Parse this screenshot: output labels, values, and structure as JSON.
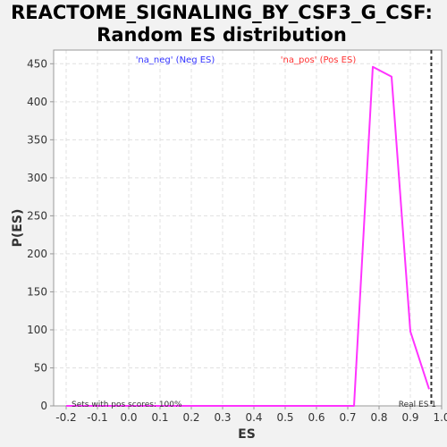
{
  "chart_data": {
    "type": "line",
    "title": "REACTOME_SIGNALING_BY_CSF3_G_CSF:",
    "subtitle": "Random ES distribution",
    "xlabel": "ES",
    "ylabel": "P(ES)",
    "xlim": [
      -0.24,
      1.0
    ],
    "ylim": [
      0,
      468
    ],
    "xticks": [
      -0.2,
      -0.1,
      0.0,
      0.1,
      0.2,
      0.3,
      0.4,
      0.5,
      0.6,
      0.7,
      0.8,
      0.9,
      1.0
    ],
    "xtick_labels": [
      "-0.2",
      "-0.1",
      "0.0",
      "0.1",
      "0.2",
      "0.3",
      "0.4",
      "0.5",
      "0.6",
      "0.7",
      "0.8",
      "0.9",
      "1.0"
    ],
    "yticks": [
      0,
      50,
      100,
      150,
      200,
      250,
      300,
      350,
      400,
      450
    ],
    "ytick_labels": [
      "0",
      "50",
      "100",
      "150",
      "200",
      "250",
      "300",
      "350",
      "400",
      "450"
    ],
    "grid": true,
    "series": [
      {
        "color": "#ff33ff",
        "x": [
          -0.2,
          0.72,
          0.78,
          0.84,
          0.9,
          0.96
        ],
        "y": [
          0,
          0,
          446,
          433,
          98,
          22
        ]
      }
    ],
    "legend": [
      {
        "label": "'na_neg' (Neg ES)",
        "color": "#3333ff"
      },
      {
        "label": "'na_pos' (Pos ES)",
        "color": "#ff3333"
      }
    ],
    "real_es": 0.967,
    "annotations": {
      "pos_scores": "Sets with pos scores: 100%",
      "real_es_label": "Real ES 1"
    },
    "colors": {
      "background": "#f2f2f2",
      "plot_background": "#ffffff",
      "grid": "#e0e0e0",
      "real_es_line": "#333333"
    }
  }
}
